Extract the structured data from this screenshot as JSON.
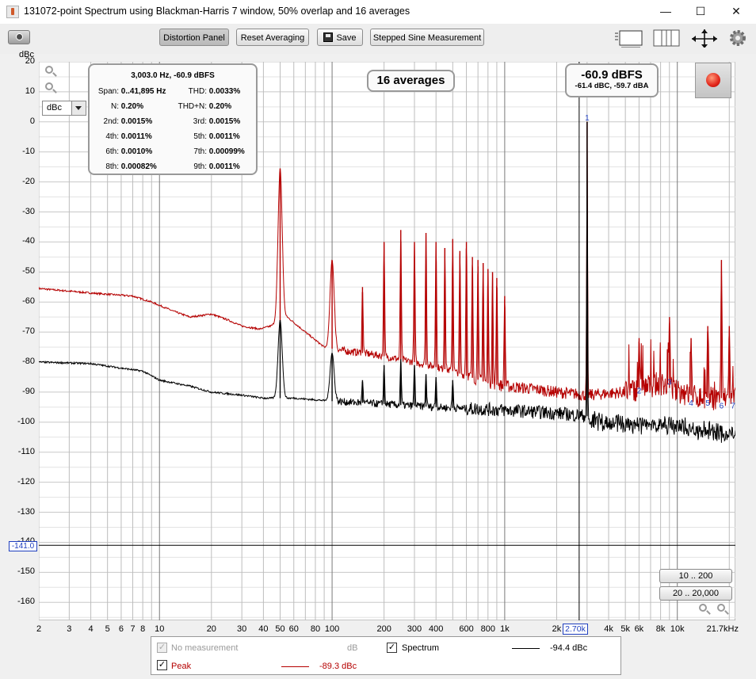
{
  "window": {
    "title": "131072-point Spectrum using Blackman-Harris 7 window, 50% overlap and 16 averages",
    "min": "—",
    "max": "☐",
    "close": "✕"
  },
  "toolbar": {
    "distortion_panel": "Distortion Panel",
    "reset_averaging": "Reset Averaging",
    "save": "Save",
    "stepped_sine": "Stepped Sine Measurement"
  },
  "info": {
    "header": "3,003.0 Hz, -60.9 dBFS",
    "rows": [
      {
        "l1": "Span:",
        "v1": "0..41,895 Hz",
        "l2": "THD:",
        "v2": "0.0033%"
      },
      {
        "l1": "N:",
        "v1": "0.20%",
        "l2": "THD+N:",
        "v2": "0.20%"
      },
      {
        "l1": "2nd:",
        "v1": "0.0015%",
        "l2": "3rd:",
        "v2": "0.0015%"
      },
      {
        "l1": "4th:",
        "v1": "0.0011%",
        "l2": "5th:",
        "v2": "0.0011%"
      },
      {
        "l1": "6th:",
        "v1": "0.0010%",
        "l2": "7th:",
        "v2": "0.00099%"
      },
      {
        "l1": "8th:",
        "v1": "0.00082%",
        "l2": "9th:",
        "v2": "0.0011%"
      }
    ]
  },
  "averages": "16 averages",
  "level": {
    "main": "-60.9 dBFS",
    "sub": "-61.4 dBC, -59.7 dBA"
  },
  "unit_select": "dBc",
  "range_buttons": [
    "10 .. 200",
    "20 .. 20,000"
  ],
  "y_cursor": "-141.0",
  "x_cursor": "2.70k",
  "legend": {
    "no_measurement": "No measurement",
    "db": "dB",
    "spectrum": "Spectrum",
    "spectrum_value": "-94.4 dBc",
    "peak": "Peak",
    "peak_value": "-89.3 dBc"
  },
  "chart_data": {
    "type": "line",
    "ylabel": "dBc",
    "ylim": [
      -166,
      20
    ],
    "xlim": [
      2,
      21700
    ],
    "x_scale": "log",
    "grid": true,
    "y_ticks": [
      "20",
      "10",
      "0",
      "-10",
      "-20",
      "-30",
      "-40",
      "-50",
      "-60",
      "-70",
      "-80",
      "-90",
      "-100",
      "-110",
      "-120",
      "-130",
      "-140",
      "-150",
      "-160"
    ],
    "x_tick_labels": [
      {
        "v": 2,
        "t": "2"
      },
      {
        "v": 3,
        "t": "3"
      },
      {
        "v": 4,
        "t": "4"
      },
      {
        "v": 5,
        "t": "5"
      },
      {
        "v": 6,
        "t": "6"
      },
      {
        "v": 7,
        "t": "7"
      },
      {
        "v": 8,
        "t": "8"
      },
      {
        "v": 10,
        "t": "10"
      },
      {
        "v": 20,
        "t": "20"
      },
      {
        "v": 30,
        "t": "30"
      },
      {
        "v": 40,
        "t": "40"
      },
      {
        "v": 50,
        "t": "50"
      },
      {
        "v": 60,
        "t": "60"
      },
      {
        "v": 80,
        "t": "80"
      },
      {
        "v": 100,
        "t": "100"
      },
      {
        "v": 200,
        "t": "200"
      },
      {
        "v": 300,
        "t": "300"
      },
      {
        "v": 400,
        "t": "400"
      },
      {
        "v": 600,
        "t": "600"
      },
      {
        "v": 800,
        "t": "800"
      },
      {
        "v": 1000,
        "t": "1k"
      },
      {
        "v": 2000,
        "t": "2k"
      },
      {
        "v": 4000,
        "t": "4k"
      },
      {
        "v": 5000,
        "t": "5k"
      },
      {
        "v": 6000,
        "t": "6k"
      },
      {
        "v": 8000,
        "t": "8k"
      },
      {
        "v": 10000,
        "t": "10k"
      },
      {
        "v": 21700,
        "t": "21.7kHz"
      }
    ],
    "cursor": {
      "x": 2700,
      "y": -141.0
    },
    "harmonic_markers": [
      {
        "label": "1",
        "x": 3003,
        "y": 0
      },
      {
        "label": "2",
        "x": 6006,
        "y": -91
      },
      {
        "label": "3",
        "x": 9009,
        "y": -88
      },
      {
        "label": "4",
        "x": 12012,
        "y": -95
      },
      {
        "label": "5",
        "x": 15015,
        "y": -95
      },
      {
        "label": "6",
        "x": 18018,
        "y": -96
      },
      {
        "label": "7",
        "x": 21021,
        "y": -96
      }
    ],
    "series": [
      {
        "name": "Peak",
        "color": "#b50000",
        "baseline": [
          [
            2,
            -55.5
          ],
          [
            4,
            -57
          ],
          [
            7,
            -58
          ],
          [
            9,
            -60
          ],
          [
            12,
            -63
          ],
          [
            15,
            -65
          ],
          [
            20,
            -64
          ],
          [
            25,
            -66
          ],
          [
            30,
            -68
          ],
          [
            38,
            -69
          ],
          [
            44,
            -68
          ],
          [
            55,
            -65
          ],
          [
            70,
            -70
          ],
          [
            90,
            -75
          ],
          [
            110,
            -76
          ],
          [
            150,
            -77
          ],
          [
            200,
            -78
          ],
          [
            300,
            -80
          ],
          [
            500,
            -83
          ],
          [
            800,
            -87
          ],
          [
            1000,
            -88
          ],
          [
            1500,
            -89
          ],
          [
            2000,
            -90
          ],
          [
            3000,
            -91
          ],
          [
            5000,
            -90
          ],
          [
            8000,
            -87
          ],
          [
            10000,
            -90
          ],
          [
            14000,
            -92
          ],
          [
            21700,
            -92
          ]
        ],
        "peaks": [
          [
            50,
            -15.5
          ],
          [
            100,
            -46
          ],
          [
            150,
            -55
          ],
          [
            200,
            -40
          ],
          [
            250,
            -36
          ],
          [
            300,
            -40
          ],
          [
            350,
            -37
          ],
          [
            400,
            -40
          ],
          [
            450,
            -42
          ],
          [
            500,
            -39
          ],
          [
            550,
            -43
          ],
          [
            600,
            -40
          ],
          [
            650,
            -45
          ],
          [
            700,
            -46
          ],
          [
            750,
            -47
          ],
          [
            800,
            -49
          ],
          [
            850,
            -50
          ],
          [
            900,
            -52
          ],
          [
            1000,
            -58
          ],
          [
            3003,
            0
          ],
          [
            6006,
            -72
          ],
          [
            9009,
            -65
          ],
          [
            12012,
            -72
          ],
          [
            15015,
            -68
          ],
          [
            18018,
            -46
          ],
          [
            20000,
            -68
          ]
        ]
      },
      {
        "name": "Spectrum",
        "color": "#000000",
        "baseline": [
          [
            2,
            -80
          ],
          [
            4,
            -80.5
          ],
          [
            6,
            -82
          ],
          [
            8,
            -83
          ],
          [
            10,
            -86
          ],
          [
            15,
            -88
          ],
          [
            20,
            -90
          ],
          [
            30,
            -91
          ],
          [
            40,
            -92
          ],
          [
            60,
            -92
          ],
          [
            100,
            -93
          ],
          [
            200,
            -94
          ],
          [
            400,
            -95
          ],
          [
            1000,
            -96
          ],
          [
            2000,
            -97
          ],
          [
            3000,
            -98
          ],
          [
            5000,
            -99
          ],
          [
            10000,
            -100
          ],
          [
            21700,
            -103
          ]
        ],
        "peaks": [
          [
            50,
            -66
          ],
          [
            100,
            -77
          ],
          [
            150,
            -86
          ],
          [
            200,
            -81
          ],
          [
            250,
            -79
          ],
          [
            300,
            -81
          ],
          [
            350,
            -84
          ],
          [
            400,
            -85
          ],
          [
            500,
            -86
          ],
          [
            3003,
            0
          ]
        ]
      }
    ]
  }
}
